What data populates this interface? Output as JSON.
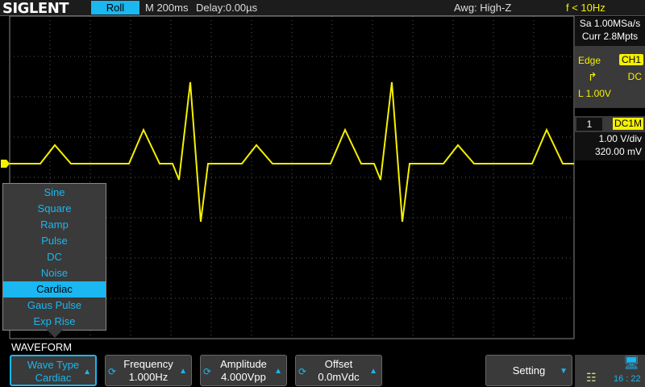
{
  "header": {
    "brand": "SIGLENT",
    "mode": "Roll",
    "timebase": "M 200ms",
    "delay": "Delay:0.00µs",
    "awg": "Awg: High-Z",
    "freq": "f < 10Hz"
  },
  "acquisition": {
    "sample_rate": "Sa 1.00MSa/s",
    "memory": "Curr 2.8Mpts"
  },
  "trigger": {
    "type": "Edge",
    "source": "CH1",
    "coupling": "DC",
    "slope_icon": "rising-edge-icon",
    "level": "L  1.00V"
  },
  "channel": {
    "number": "1",
    "coupling": "DC1M",
    "scale": "1.00 V/div",
    "offset": "320.00 mV",
    "marker": "1",
    "color": "#f5f000"
  },
  "waveform_menu": {
    "items": [
      "Sine",
      "Square",
      "Ramp",
      "Pulse",
      "DC",
      "Noise",
      "Cardiac",
      "Gaus Pulse",
      "Exp Rise"
    ],
    "selected": "Cardiac"
  },
  "softkeys": {
    "title": "WAVEFORM",
    "wave_type": {
      "label": "Wave Type",
      "value": "Cardiac"
    },
    "frequency": {
      "label": "Frequency",
      "value": "1.000Hz"
    },
    "amplitude": {
      "label": "Amplitude",
      "value": "4.000Vpp"
    },
    "offset": {
      "label": "Offset",
      "value": "0.0mVdc"
    },
    "setting": {
      "label": "Setting"
    }
  },
  "status": {
    "time": "16 : 22"
  },
  "colors": {
    "accent": "#1ab7f0",
    "trace": "#f5f000"
  }
}
